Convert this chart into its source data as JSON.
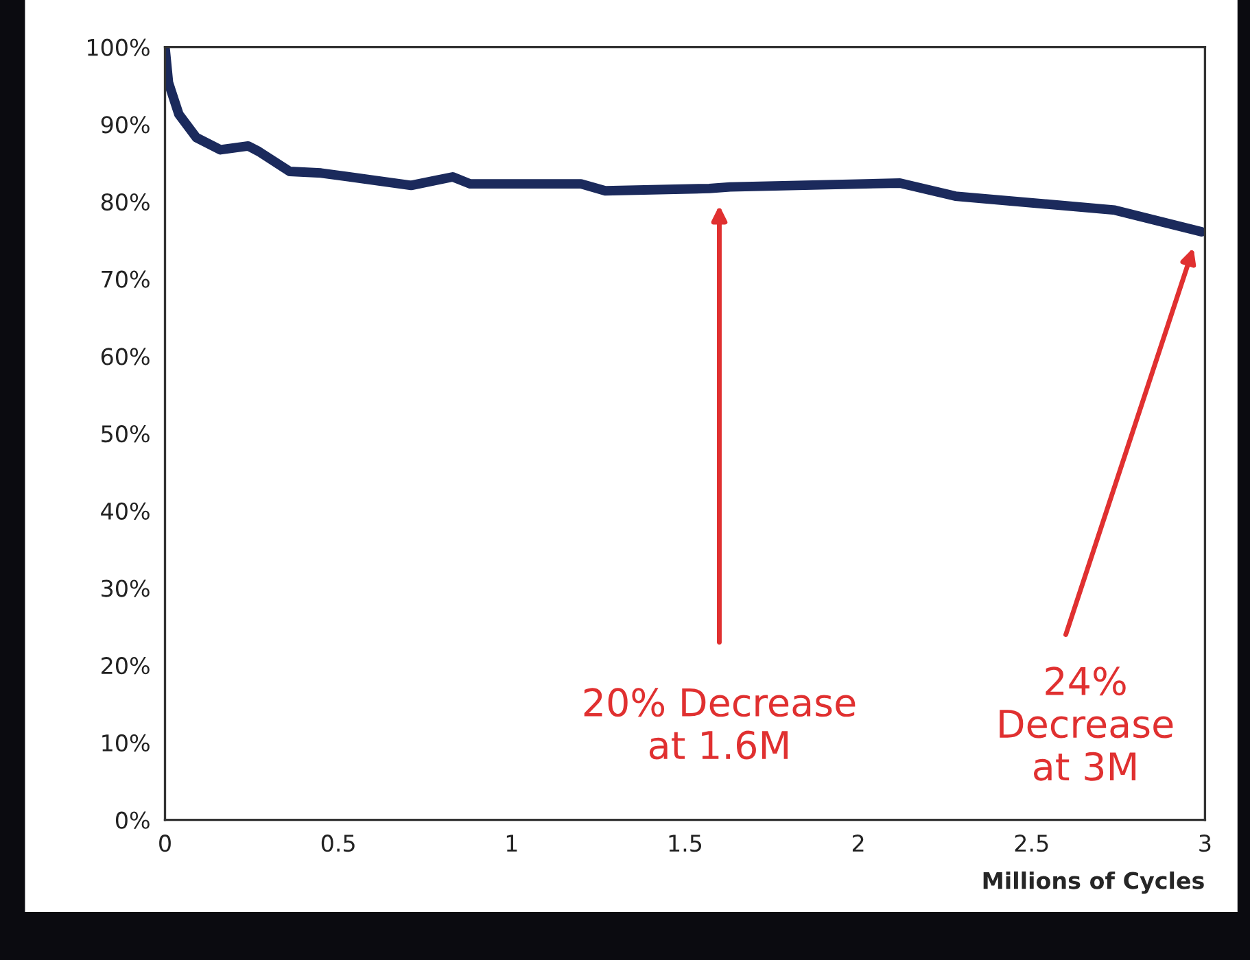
{
  "chart_data": {
    "type": "line",
    "xlabel": "Millions of Cycles",
    "x": [
      0,
      0.01,
      0.04,
      0.09,
      0.16,
      0.24,
      0.27,
      0.36,
      0.45,
      0.71,
      0.83,
      0.88,
      1.2,
      1.27,
      1.57,
      1.63,
      2.12,
      2.28,
      2.74,
      2.99
    ],
    "series": [
      {
        "color": "#1b2a5c",
        "values": [
          100,
          95.4,
          91.3,
          88.3,
          86.7,
          87.2,
          86.5,
          83.9,
          83.7,
          82.1,
          83.2,
          82.3,
          82.3,
          81.4,
          81.7,
          81.9,
          82.4,
          80.7,
          78.9,
          76.1
        ]
      }
    ],
    "xlim": [
      0,
      3
    ],
    "ylim": [
      0,
      100
    ],
    "xticks": [
      0,
      0.5,
      1,
      1.5,
      2,
      2.5,
      3
    ],
    "yticks": [
      {
        "value": 0,
        "label": "0%"
      },
      {
        "value": 10,
        "label": "10%"
      },
      {
        "value": 20,
        "label": "20%"
      },
      {
        "value": 30,
        "label": "30%"
      },
      {
        "value": 40,
        "label": "40%"
      },
      {
        "value": 50,
        "label": "50%"
      },
      {
        "value": 60,
        "label": "60%"
      },
      {
        "value": 70,
        "label": "70%"
      },
      {
        "value": 80,
        "label": "80%"
      },
      {
        "value": 90,
        "label": "90%"
      },
      {
        "value": 100,
        "label": "100%"
      }
    ],
    "annotations": [
      "20% Decrease\nat 1.6M",
      "24%\nDecrease\nat 3M"
    ],
    "grid": false,
    "legend": false,
    "marker": "none",
    "line_style": "solid"
  }
}
